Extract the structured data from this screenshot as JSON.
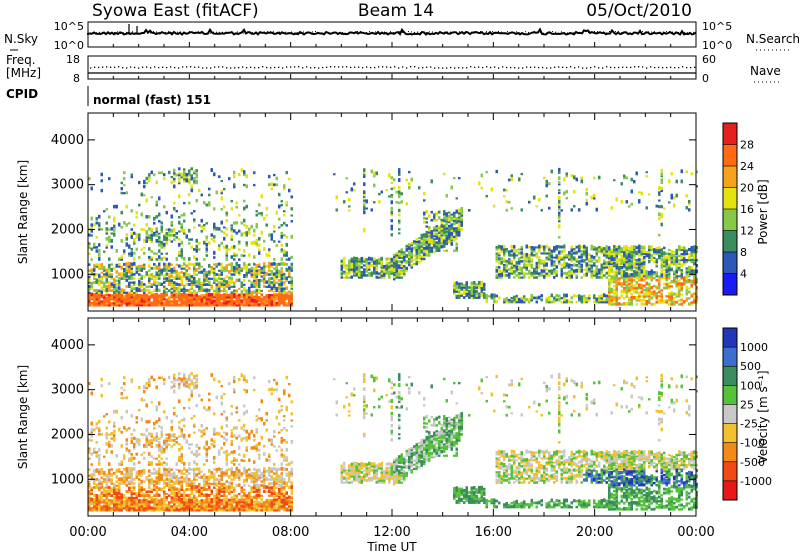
{
  "header": {
    "title": "Syowa East (fitACF)",
    "beam": "Beam 14",
    "date": "05/Oct/2010"
  },
  "noise_panel": {
    "left_label": "N.Sky",
    "right_label": "N.Search",
    "left_ticks": [
      "10^5",
      "10^0"
    ],
    "right_ticks": [
      "10^5",
      "10^0"
    ]
  },
  "freq_panel": {
    "left_label_1": "Freq.",
    "left_label_2": "[MHz]",
    "right_label": "Nave",
    "left_ticks": [
      "18",
      "8"
    ],
    "right_ticks": [
      "60",
      "0"
    ]
  },
  "cpid_panel": {
    "label": "CPID",
    "value": "normal (fast) 151"
  },
  "chart_data": [
    {
      "type": "heatmap",
      "name": "power",
      "xlabel": "",
      "ylabel": "Slant Range [km]",
      "ylim": [
        180,
        4600
      ],
      "yticks": [
        "1000",
        "2000",
        "3000",
        "4000"
      ],
      "colorbar_label": "Power [dB]",
      "colorbar_ticks": [
        "28",
        "24",
        "20",
        "16",
        "12",
        "8",
        "4"
      ],
      "colorbar_colors": [
        "#e51e1e",
        "#ff6a12",
        "#f7a21c",
        "#e6e20f",
        "#86c84a",
        "#3b8c5e",
        "#2c58b8",
        "#1a1af5"
      ]
    },
    {
      "type": "heatmap",
      "name": "velocity",
      "xlabel": "Time UT",
      "ylabel": "Slant Range [km]",
      "ylim": [
        180,
        4600
      ],
      "yticks": [
        "1000",
        "2000",
        "3000",
        "4000"
      ],
      "xticks": [
        "00:00",
        "04:00",
        "08:00",
        "12:00",
        "16:00",
        "20:00",
        "00:00"
      ],
      "colorbar_label": "Velocity [m s⁻¹]",
      "colorbar_ticks": [
        "1000",
        "500",
        "100",
        "25",
        "-25",
        "-100",
        "-500",
        "-1000"
      ],
      "colorbar_colors": [
        "#2336b8",
        "#3a6fd0",
        "#3b8c5e",
        "#55c23a",
        "#c8c8c8",
        "#f2c12e",
        "#f28a1a",
        "#f24a14",
        "#e81818"
      ]
    }
  ]
}
